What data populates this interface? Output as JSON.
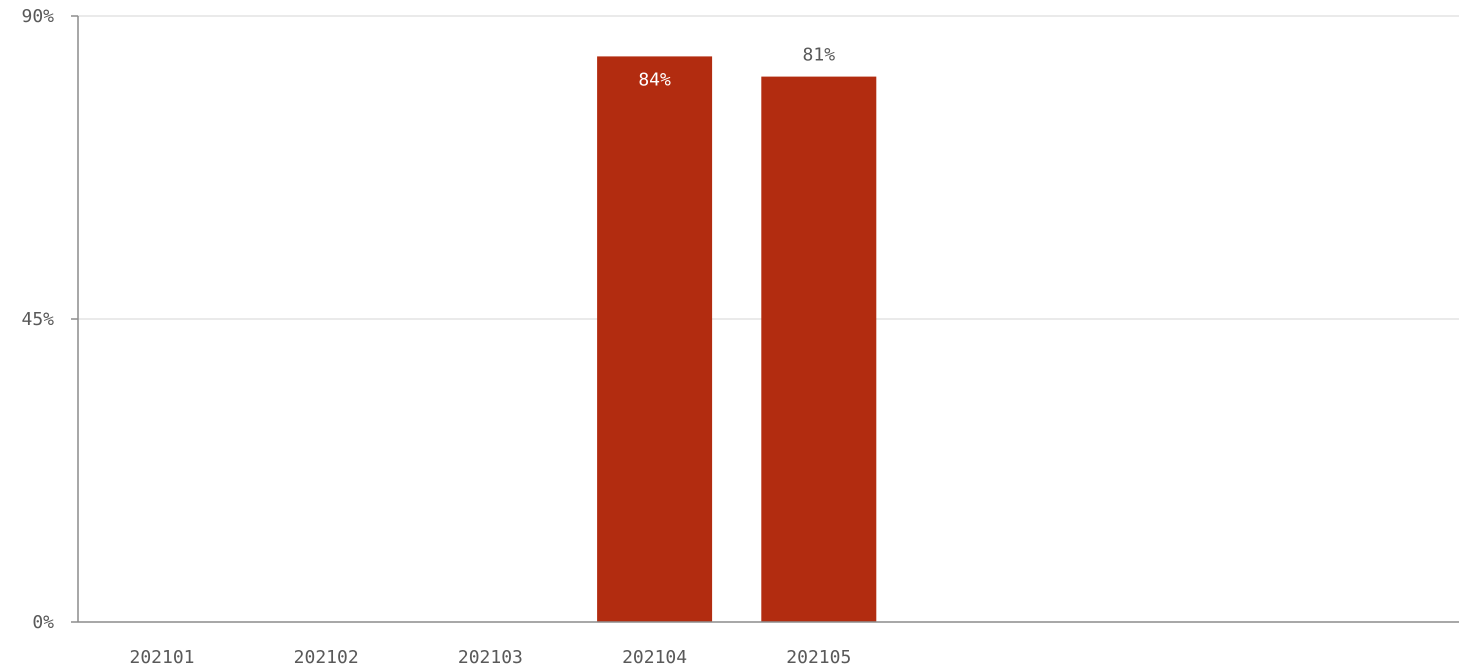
{
  "chart_data": {
    "type": "bar",
    "categories": [
      "202101",
      "202102",
      "202103",
      "202104",
      "202105"
    ],
    "values": [
      null,
      null,
      null,
      84,
      81
    ],
    "value_labels": [
      null,
      null,
      null,
      "84%",
      "81%"
    ],
    "title": "",
    "xlabel": "",
    "ylabel": "",
    "ylim": [
      0,
      90
    ],
    "yticks": [
      0,
      45,
      90
    ],
    "ytick_labels": [
      "0%",
      "45%",
      "90%"
    ],
    "grid": true,
    "legend": "none",
    "bar_color": "#b22c10",
    "label_color_inside": "#ffffff",
    "label_color_outside": "#595959"
  }
}
